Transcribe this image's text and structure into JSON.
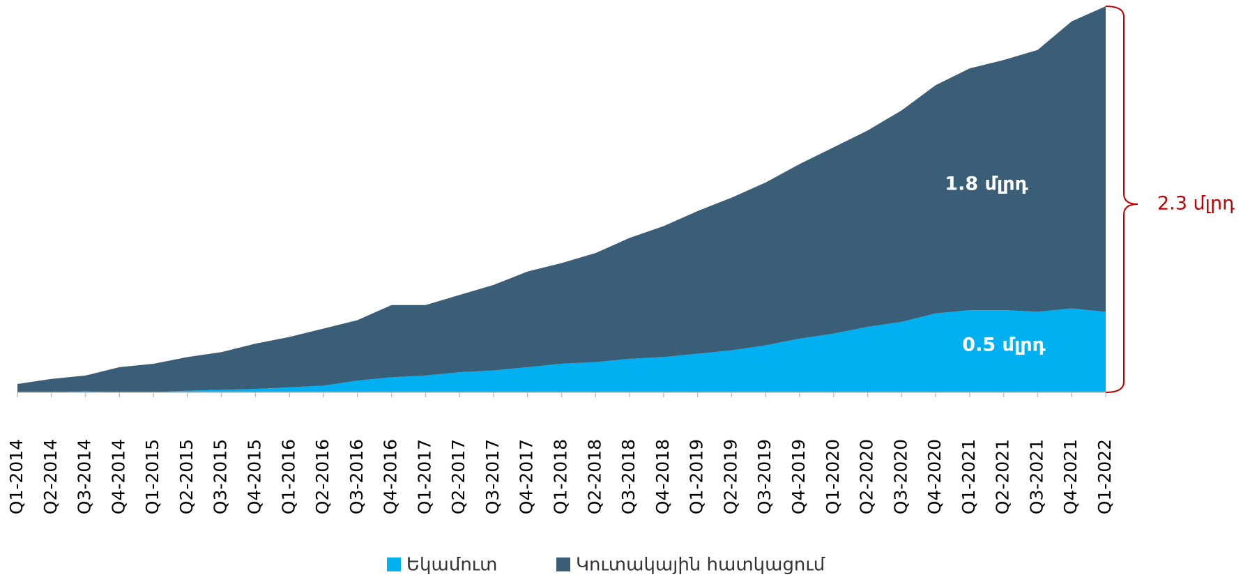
{
  "chart_data": {
    "type": "stacked_area",
    "categories": [
      "Q1-2014",
      "Q2-2014",
      "Q3-2014",
      "Q4-2014",
      "Q1-2015",
      "Q2-2015",
      "Q3-2015",
      "Q4-2015",
      "Q1-2016",
      "Q2-2016",
      "Q3-2016",
      "Q4-2016",
      "Q1-2017",
      "Q2-2017",
      "Q3-2017",
      "Q4-2017",
      "Q1-2018",
      "Q2-2018",
      "Q3-2018",
      "Q4-2018",
      "Q1-2019",
      "Q2-2019",
      "Q3-2019",
      "Q4-2019",
      "Q1-2020",
      "Q2-2020",
      "Q3-2020",
      "Q4-2020",
      "Q1-2021",
      "Q2-2021",
      "Q3-2021",
      "Q4-2021",
      "Q1-2022"
    ],
    "series": [
      {
        "name": "Եկամուտ",
        "color": "#00b0f0",
        "values": [
          0,
          0,
          0.005,
          0,
          0,
          0.01,
          0.015,
          0.02,
          0.03,
          0.04,
          0.07,
          0.09,
          0.1,
          0.12,
          0.13,
          0.15,
          0.17,
          0.18,
          0.2,
          0.21,
          0.23,
          0.25,
          0.28,
          0.32,
          0.35,
          0.39,
          0.42,
          0.47,
          0.49,
          0.49,
          0.48,
          0.5,
          0.48
        ]
      },
      {
        "name": "Կուտակային հատկացում",
        "color": "#3b5e78",
        "values": [
          0.05,
          0.08,
          0.095,
          0.15,
          0.17,
          0.2,
          0.225,
          0.27,
          0.3,
          0.34,
          0.36,
          0.43,
          0.42,
          0.46,
          0.51,
          0.57,
          0.6,
          0.65,
          0.72,
          0.78,
          0.85,
          0.91,
          0.97,
          1.04,
          1.11,
          1.17,
          1.26,
          1.36,
          1.44,
          1.49,
          1.56,
          1.71,
          1.82
        ]
      }
    ],
    "ylim": [
      0,
      2.3
    ],
    "annotations": [
      "1.8 մլրդ",
      "0.5 մլրդ",
      "2.3 մլրդ"
    ]
  }
}
